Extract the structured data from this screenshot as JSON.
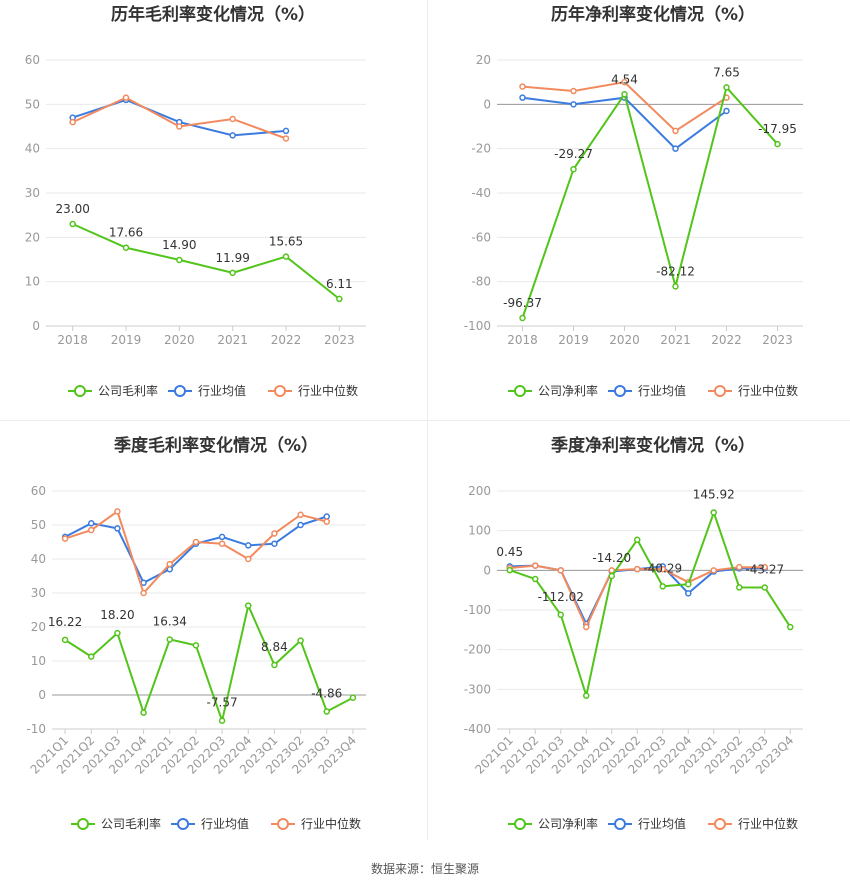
{
  "footer": {
    "source": "数据来源：恒生聚源"
  },
  "colors": {
    "company": "#52c41a",
    "industry_avg": "#3b7be0",
    "industry_median": "#f28a5e"
  },
  "chart_data": [
    {
      "type": "line",
      "title": "历年毛利率变化情况（%）",
      "categories": [
        "2018",
        "2019",
        "2020",
        "2021",
        "2022",
        "2023"
      ],
      "ylim": [
        0,
        60
      ],
      "yticks": [
        0,
        10,
        20,
        30,
        40,
        50,
        60
      ],
      "legend": [
        "公司毛利率",
        "行业均值",
        "行业中位数"
      ],
      "series": [
        {
          "name": "公司毛利率",
          "values": [
            23.0,
            17.66,
            14.9,
            11.99,
            15.65,
            6.11
          ],
          "labels": [
            "23.00",
            "17.66",
            "14.90",
            "11.99",
            "15.65",
            "6.11"
          ]
        },
        {
          "name": "行业均值",
          "values": [
            47,
            51,
            46,
            43,
            44,
            null
          ]
        },
        {
          "name": "行业中位数",
          "values": [
            46,
            51.5,
            45,
            46.7,
            42.3,
            null
          ]
        }
      ]
    },
    {
      "type": "line",
      "title": "历年净利率变化情况（%）",
      "categories": [
        "2018",
        "2019",
        "2020",
        "2021",
        "2022",
        "2023"
      ],
      "ylim": [
        -100,
        20
      ],
      "yticks": [
        -100,
        -80,
        -60,
        -40,
        -20,
        0,
        20
      ],
      "legend": [
        "公司净利率",
        "行业均值",
        "行业中位数"
      ],
      "series": [
        {
          "name": "公司净利率",
          "values": [
            -96.37,
            -29.27,
            4.54,
            -82.12,
            7.65,
            -17.95
          ],
          "labels": [
            "-96.37",
            "-29.27",
            "4.54",
            "-82.12",
            "7.65",
            "-17.95"
          ]
        },
        {
          "name": "行业均值",
          "values": [
            3,
            0,
            3,
            -20,
            -3,
            null
          ]
        },
        {
          "name": "行业中位数",
          "values": [
            8,
            6,
            10,
            -12,
            3,
            null
          ]
        }
      ]
    },
    {
      "type": "line",
      "title": "季度毛利率变化情况（%）",
      "categories": [
        "2021Q1",
        "2021Q2",
        "2021Q3",
        "2021Q4",
        "2022Q1",
        "2022Q2",
        "2022Q3",
        "2022Q4",
        "2023Q1",
        "2023Q2",
        "2023Q3",
        "2023Q4"
      ],
      "ylim": [
        -10,
        60
      ],
      "yticks": [
        -10,
        0,
        10,
        20,
        30,
        40,
        50,
        60
      ],
      "legend": [
        "公司毛利率",
        "行业均值",
        "行业中位数"
      ],
      "series": [
        {
          "name": "公司毛利率",
          "values": [
            16.22,
            11.3,
            18.2,
            -5.2,
            16.34,
            14.6,
            -7.57,
            26.3,
            8.84,
            16.0,
            -4.86,
            -0.8
          ],
          "labels": [
            "16.22",
            "",
            "18.20",
            "",
            "16.34",
            "",
            "-7.57",
            "",
            "8.84",
            "",
            "-4.86",
            ""
          ]
        },
        {
          "name": "行业均值",
          "values": [
            46.5,
            50.5,
            49,
            33,
            37,
            44.5,
            46.5,
            44,
            44.5,
            50,
            52.5,
            null
          ]
        },
        {
          "name": "行业中位数",
          "values": [
            46,
            48.5,
            54,
            30,
            38.5,
            45,
            44.5,
            40,
            47.5,
            53,
            51,
            null
          ]
        }
      ]
    },
    {
      "type": "line",
      "title": "季度净利率变化情况（%）",
      "categories": [
        "2021Q1",
        "2021Q2",
        "2021Q3",
        "2021Q4",
        "2022Q1",
        "2022Q2",
        "2022Q3",
        "2022Q4",
        "2023Q1",
        "2023Q2",
        "2023Q3",
        "2023Q4"
      ],
      "ylim": [
        -400,
        200
      ],
      "yticks": [
        -400,
        -300,
        -200,
        -100,
        0,
        100,
        200
      ],
      "legend": [
        "公司净利率",
        "行业均值",
        "行业中位数"
      ],
      "series": [
        {
          "name": "公司净利率",
          "values": [
            0.45,
            -22,
            -112.02,
            -316,
            -14.2,
            77,
            -40.29,
            -35,
            145.92,
            -43,
            -43.27,
            -143
          ],
          "labels": [
            "0.45",
            "",
            "-112.02",
            "",
            "-14.20",
            "",
            "-40.29",
            "",
            "145.92",
            "",
            "-43.27",
            ""
          ]
        },
        {
          "name": "行业均值",
          "values": [
            10,
            12,
            0,
            -135,
            -3,
            3,
            10,
            -58,
            -3,
            5,
            5,
            null
          ]
        },
        {
          "name": "行业中位数",
          "values": [
            6,
            12,
            0,
            -143,
            0,
            3,
            3,
            -30,
            0,
            8,
            8,
            null
          ]
        }
      ]
    }
  ]
}
